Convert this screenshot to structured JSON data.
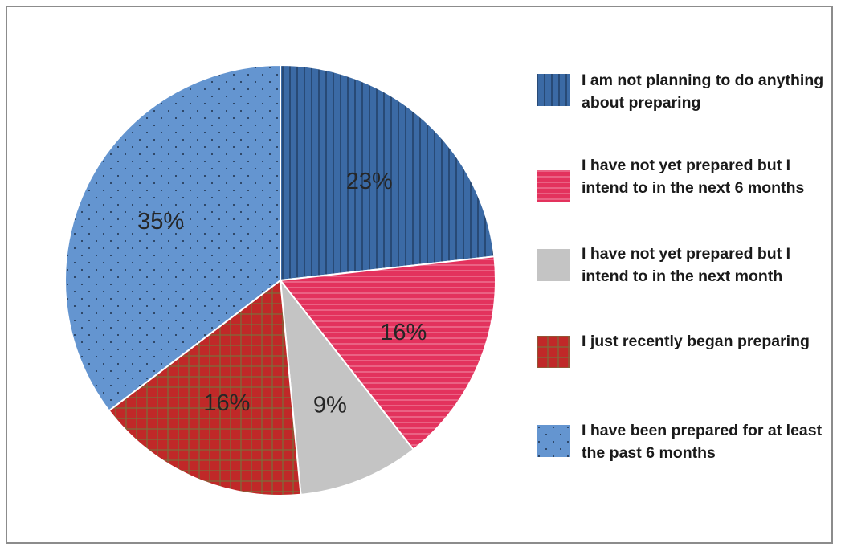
{
  "chart_data": {
    "type": "pie",
    "start_angle_deg": 0,
    "direction": "clockwise",
    "slices": [
      {
        "label": "I am not planning to do anything about preparing",
        "value": 23,
        "value_label": "23%",
        "color": "#3b6aa5",
        "pattern": "vertical-lines"
      },
      {
        "label": "I have not yet prepared but I intend to in the next 6 months",
        "value": 16,
        "value_label": "16%",
        "color": "#e3325d",
        "pattern": "horizontal-lines"
      },
      {
        "label": "I have not yet prepared but I intend to in the next month",
        "value": 9,
        "value_label": "9%",
        "color": "#c4c4c4",
        "pattern": "none"
      },
      {
        "label": "I just recently began preparing",
        "value": 16,
        "value_label": "16%",
        "color": "#c02828",
        "pattern": "grid"
      },
      {
        "label": "I have been prepared for at least the past 6 months",
        "value": 35,
        "value_label": "35%",
        "color": "#6495d0",
        "pattern": "dots"
      }
    ],
    "legend_position": "right"
  },
  "legend": {
    "items": [
      {
        "text": "I am not planning to do anything about preparing"
      },
      {
        "text": "I have not yet prepared but I intend to in the next 6 months"
      },
      {
        "text": "I have not yet prepared but I intend to in the next month"
      },
      {
        "text": "I just recently began preparing"
      },
      {
        "text": "I have been prepared for at least the past 6 months"
      }
    ]
  }
}
